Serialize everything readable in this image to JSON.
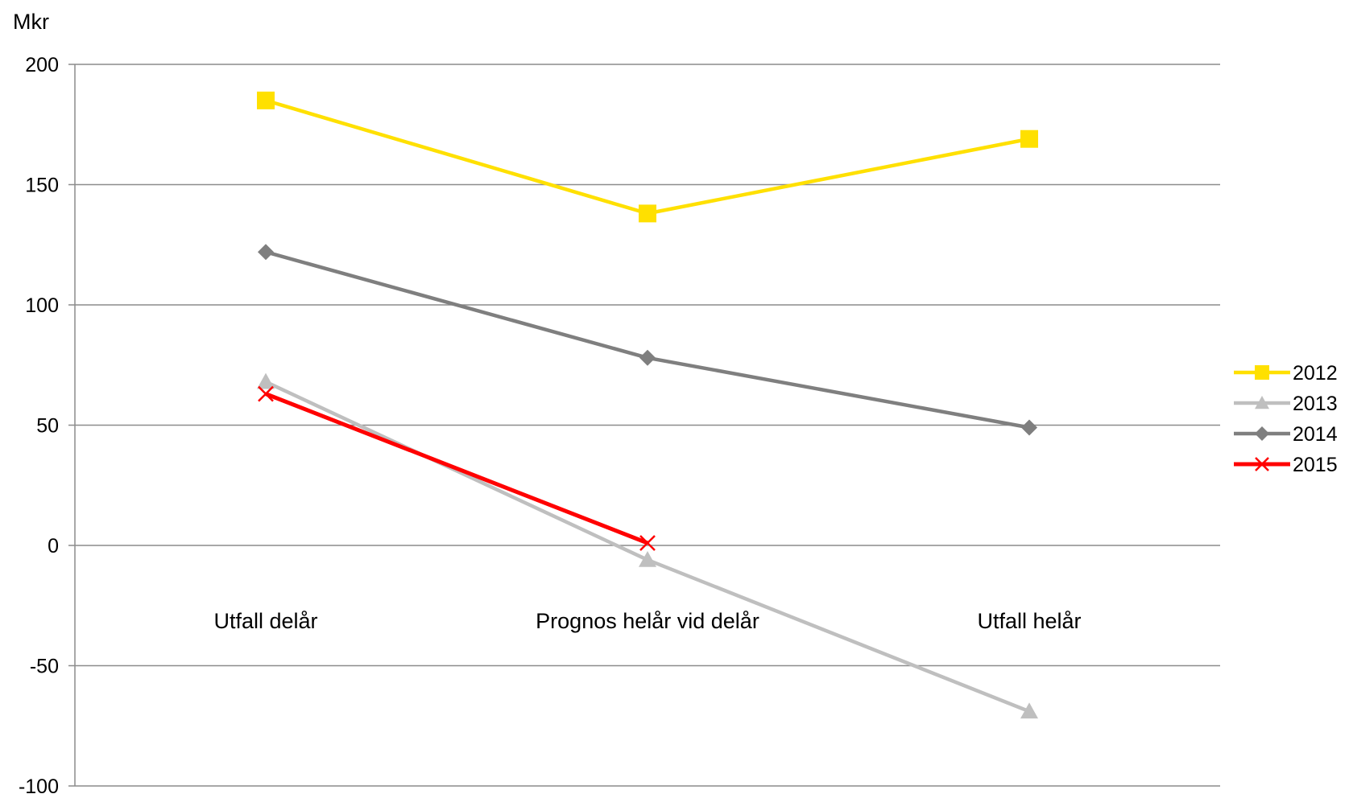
{
  "chart_data": {
    "type": "line",
    "ylabel": "Mkr",
    "categories": [
      "Utfall delår",
      "Prognos helår vid delår",
      "Utfall helår"
    ],
    "ylim": [
      -100,
      200
    ],
    "yticks": [
      200,
      150,
      100,
      50,
      0,
      -50,
      -100
    ],
    "grid": true,
    "legend": "right",
    "series": [
      {
        "name": "2012",
        "values": [
          185,
          138,
          169
        ],
        "color": "#FFE000",
        "marker": "square"
      },
      {
        "name": "2013",
        "values": [
          68,
          -6,
          -69
        ],
        "color": "#BFBFBF",
        "marker": "triangle"
      },
      {
        "name": "2014",
        "values": [
          122,
          78,
          49
        ],
        "color": "#7F7F7F",
        "marker": "diamond"
      },
      {
        "name": "2015",
        "values": [
          63,
          1,
          null
        ],
        "color": "#FF0000",
        "marker": "x"
      }
    ]
  }
}
